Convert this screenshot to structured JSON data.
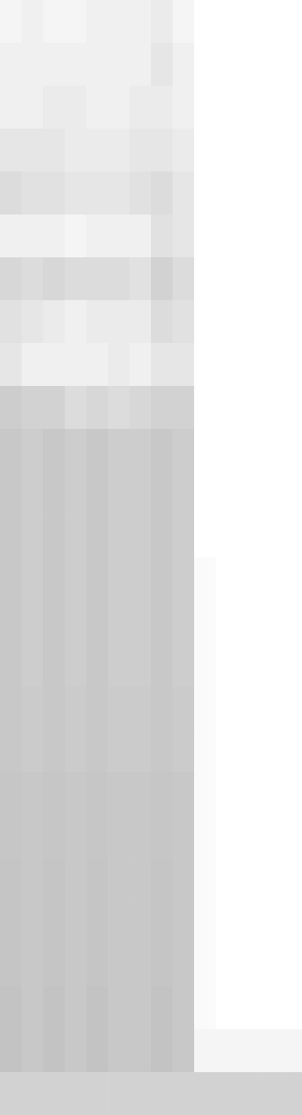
{
  "chart_data": {
    "type": "heatmap",
    "tick_labels": false,
    "grid": false,
    "color": "#9b9b9b",
    "zlim": [
      0,
      100
    ],
    "values": [
      [
        10,
        15,
        10,
        10,
        15,
        15,
        15,
        20,
        10,
        0,
        0,
        0,
        0,
        0
      ],
      [
        15,
        15,
        15,
        15,
        15,
        15,
        15,
        25,
        15,
        0,
        0,
        0,
        0,
        0
      ],
      [
        15,
        15,
        20,
        20,
        15,
        15,
        20,
        20,
        15,
        0,
        0,
        0,
        0,
        0
      ],
      [
        25,
        25,
        25,
        20,
        20,
        20,
        25,
        25,
        20,
        0,
        0,
        0,
        0,
        0
      ],
      [
        35,
        30,
        30,
        25,
        25,
        25,
        30,
        35,
        25,
        0,
        0,
        0,
        0,
        0
      ],
      [
        15,
        15,
        15,
        10,
        15,
        15,
        15,
        30,
        25,
        0,
        0,
        0,
        0,
        0
      ],
      [
        40,
        35,
        40,
        35,
        35,
        35,
        30,
        45,
        35,
        0,
        0,
        0,
        0,
        0
      ],
      [
        30,
        25,
        20,
        15,
        20,
        20,
        20,
        35,
        30,
        0,
        0,
        0,
        0,
        0
      ],
      [
        25,
        15,
        15,
        15,
        15,
        20,
        15,
        25,
        25,
        0,
        0,
        0,
        0,
        0
      ],
      [
        50,
        45,
        45,
        35,
        40,
        35,
        40,
        45,
        45,
        0,
        0,
        0,
        0,
        0
      ],
      [
        55,
        50,
        55,
        50,
        55,
        50,
        50,
        55,
        50,
        0,
        0,
        0,
        0,
        0
      ],
      [
        55,
        50,
        55,
        50,
        55,
        50,
        50,
        55,
        50,
        0,
        0,
        0,
        0,
        0
      ],
      [
        55,
        50,
        55,
        50,
        55,
        50,
        50,
        55,
        50,
        0,
        0,
        0,
        0,
        0
      ],
      [
        55,
        50,
        55,
        50,
        55,
        50,
        50,
        55,
        50,
        5,
        0,
        0,
        0,
        0
      ],
      [
        55,
        50,
        55,
        50,
        55,
        50,
        50,
        55,
        50,
        5,
        0,
        0,
        0,
        0
      ],
      [
        55,
        50,
        55,
        50,
        55,
        50,
        50,
        55,
        50,
        5,
        0,
        0,
        0,
        0
      ],
      [
        55,
        52,
        55,
        52,
        55,
        52,
        52,
        55,
        52,
        5,
        0,
        0,
        0,
        0
      ],
      [
        55,
        52,
        55,
        52,
        55,
        52,
        52,
        55,
        52,
        5,
        0,
        0,
        0,
        0
      ],
      [
        57,
        55,
        57,
        55,
        57,
        55,
        55,
        57,
        55,
        5,
        0,
        0,
        0,
        0
      ],
      [
        57,
        55,
        57,
        55,
        57,
        55,
        55,
        57,
        55,
        5,
        0,
        0,
        0,
        0
      ],
      [
        58,
        55,
        58,
        55,
        58,
        55,
        55,
        58,
        55,
        5,
        0,
        0,
        0,
        0
      ],
      [
        58,
        55,
        58,
        55,
        58,
        55,
        55,
        58,
        55,
        5,
        0,
        0,
        0,
        0
      ],
      [
        58,
        55,
        58,
        55,
        58,
        55,
        55,
        58,
        55,
        5,
        0,
        0,
        0,
        0
      ],
      [
        60,
        55,
        60,
        55,
        60,
        55,
        55,
        60,
        55,
        5,
        0,
        0,
        0,
        0
      ],
      [
        60,
        55,
        60,
        55,
        60,
        55,
        55,
        60,
        55,
        10,
        10,
        10,
        10,
        10
      ],
      [
        45,
        45,
        45,
        45,
        45,
        45,
        45,
        45,
        45,
        45,
        45,
        45,
        45,
        45
      ]
    ]
  }
}
